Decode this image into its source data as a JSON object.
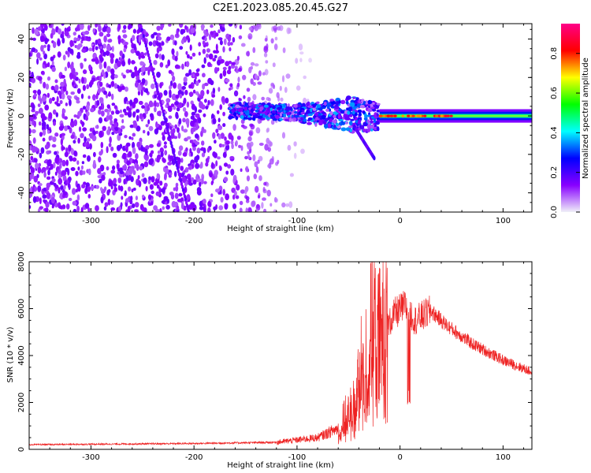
{
  "title": "C2E1.2023.085.20.45.G27",
  "chart_data": [
    {
      "type": "heatmap",
      "xlabel": "Height of straight line (km)",
      "ylabel": "Frequency (Hz)",
      "xlim": [
        -360,
        128
      ],
      "ylim": [
        -50,
        48
      ],
      "xticks": [
        -300,
        -200,
        -100,
        0,
        100
      ],
      "yticks": [
        -40,
        -20,
        0,
        20,
        40
      ],
      "colorbar": {
        "label": "Normalized spectral amplitude",
        "range": [
          0.0,
          0.95
        ],
        "ticks": [
          0.0,
          0.2,
          0.4,
          0.6,
          0.8
        ],
        "colors": [
          "#f0f0f8",
          "#8800ff",
          "#0000ff",
          "#00ffff",
          "#00ff00",
          "#ffff00",
          "#ff0000",
          "#ff0088"
        ]
      },
      "features": [
        {
          "desc": "noise",
          "x_range": [
            -360,
            -80
          ],
          "freq_range": [
            -50,
            48
          ],
          "amplitude": 0.07
        },
        {
          "desc": "track",
          "x": [
            -165,
            -120,
            -80,
            -50,
            -35,
            -20
          ],
          "freq_center": [
            3,
            2,
            1,
            1,
            0,
            0
          ],
          "amplitude": 0.35
        },
        {
          "desc": "carrier",
          "x": [
            -20,
            128
          ],
          "freq_center": [
            0,
            0
          ],
          "amplitude": 0.9
        },
        {
          "desc": "diagonal",
          "x": [
            -252,
            -205
          ],
          "freq": [
            48,
            -50
          ],
          "amplitude": 0.13
        },
        {
          "desc": "branch",
          "x": [
            -45,
            -25
          ],
          "freq": [
            -5,
            -22
          ],
          "amplitude": 0.15
        }
      ]
    },
    {
      "type": "line",
      "xlabel": "Height of straight line (km)",
      "ylabel": "SNR (10 * v/v)",
      "xlim": [
        -360,
        128
      ],
      "ylim": [
        0,
        8000
      ],
      "xticks": [
        -300,
        -200,
        -100,
        0,
        100
      ],
      "yticks": [
        0,
        2000,
        4000,
        6000,
        8000
      ],
      "color": "#ee2222",
      "profile": {
        "x": [
          -360,
          -200,
          -120,
          -80,
          -60,
          -45,
          -35,
          -28,
          -20,
          -15,
          -5,
          5,
          15,
          30,
          45,
          70,
          100,
          128
        ],
        "y": [
          200,
          250,
          300,
          500,
          900,
          1800,
          3800,
          4800,
          4500,
          5000,
          5800,
          6100,
          5500,
          5900,
          5300,
          4500,
          3800,
          3300
        ]
      },
      "peak": {
        "x": -25,
        "y": 8000
      }
    }
  ]
}
